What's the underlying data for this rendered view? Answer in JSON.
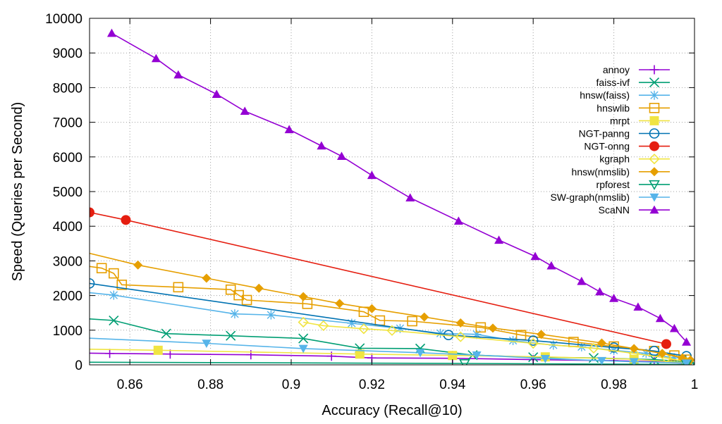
{
  "chart_data": {
    "type": "line",
    "xlabel": "Accuracy (Recall@10)",
    "ylabel": "Speed (Queries per Second)",
    "xlim": [
      0.85,
      1.0
    ],
    "ylim": [
      0,
      10000
    ],
    "x_ticks": [
      "0.86",
      "0.88",
      "0.9",
      "0.92",
      "0.94",
      "0.96",
      "0.98",
      "1"
    ],
    "x_tick_values": [
      0.86,
      0.88,
      0.9,
      0.92,
      0.94,
      0.96,
      0.98,
      1.0
    ],
    "y_ticks": [
      "0",
      "1000",
      "2000",
      "3000",
      "4000",
      "5000",
      "6000",
      "7000",
      "8000",
      "9000",
      "10000"
    ],
    "y_tick_values": [
      0,
      1000,
      2000,
      3000,
      4000,
      5000,
      6000,
      7000,
      8000,
      9000,
      10000
    ],
    "grid": true,
    "legend_position": "top-right",
    "series": [
      {
        "name": "annoy",
        "color": "#9400d3",
        "marker": "plus",
        "points": [
          [
            0.84,
            350
          ],
          [
            0.855,
            330
          ],
          [
            0.87,
            310
          ],
          [
            0.89,
            290
          ],
          [
            0.91,
            250
          ],
          [
            0.92,
            200
          ],
          [
            0.94,
            190
          ],
          [
            0.96,
            150
          ],
          [
            0.98,
            120
          ],
          [
            0.99,
            90
          ],
          [
            0.998,
            40
          ]
        ]
      },
      {
        "name": "faiss-ivf",
        "color": "#009e73",
        "marker": "x",
        "points": [
          [
            0.84,
            1400
          ],
          [
            0.856,
            1280
          ],
          [
            0.869,
            900
          ],
          [
            0.885,
            840
          ],
          [
            0.903,
            760
          ],
          [
            0.917,
            480
          ],
          [
            0.932,
            470
          ],
          [
            0.945,
            280
          ],
          [
            0.96,
            220
          ],
          [
            0.975,
            200
          ],
          [
            0.99,
            150
          ],
          [
            0.998,
            90
          ],
          [
            1.0,
            30
          ]
        ]
      },
      {
        "name": "hnsw(faiss)",
        "color": "#56b4e9",
        "marker": "star",
        "points": [
          [
            0.84,
            2200
          ],
          [
            0.856,
            2010
          ],
          [
            0.886,
            1470
          ],
          [
            0.895,
            1440
          ],
          [
            0.915,
            1200
          ],
          [
            0.927,
            1050
          ],
          [
            0.937,
            910
          ],
          [
            0.946,
            880
          ],
          [
            0.955,
            700
          ],
          [
            0.965,
            570
          ],
          [
            0.972,
            520
          ],
          [
            0.98,
            420
          ],
          [
            0.988,
            330
          ],
          [
            0.995,
            200
          ]
        ]
      },
      {
        "name": "hnswlib",
        "color": "#e69f00",
        "marker": "square-open",
        "points": [
          [
            0.84,
            3000
          ],
          [
            0.853,
            2790
          ],
          [
            0.856,
            2640
          ],
          [
            0.858,
            2310
          ],
          [
            0.872,
            2240
          ],
          [
            0.885,
            2170
          ],
          [
            0.887,
            2010
          ],
          [
            0.889,
            1870
          ],
          [
            0.904,
            1760
          ],
          [
            0.918,
            1530
          ],
          [
            0.922,
            1280
          ],
          [
            0.93,
            1260
          ],
          [
            0.947,
            1080
          ],
          [
            0.957,
            860
          ],
          [
            0.97,
            660
          ],
          [
            0.98,
            530
          ],
          [
            0.99,
            400
          ],
          [
            0.995,
            270
          ],
          [
            0.998,
            150
          ]
        ]
      },
      {
        "name": "mrpt",
        "color": "#f0e442",
        "marker": "square-filled",
        "points": [
          [
            0.84,
            470
          ],
          [
            0.867,
            420
          ],
          [
            0.917,
            310
          ],
          [
            0.94,
            270
          ],
          [
            0.963,
            230
          ],
          [
            0.985,
            160
          ],
          [
            0.998,
            60
          ]
        ]
      },
      {
        "name": "NGT-panng",
        "color": "#0072b2",
        "marker": "circle-open",
        "points": [
          [
            0.85,
            2350
          ],
          [
            0.939,
            860
          ],
          [
            0.96,
            700
          ],
          [
            0.98,
            500
          ],
          [
            0.99,
            400
          ],
          [
            0.998,
            250
          ]
        ]
      },
      {
        "name": "NGT-onng",
        "color": "#e51e10",
        "marker": "circle-filled",
        "points": [
          [
            0.85,
            4400
          ],
          [
            0.859,
            4180
          ],
          [
            0.993,
            600
          ]
        ]
      },
      {
        "name": "kgraph",
        "color": "#f0e442",
        "marker": "diamond-open",
        "points": [
          [
            0.903,
            1230
          ],
          [
            0.908,
            1130
          ],
          [
            0.918,
            1040
          ],
          [
            0.925,
            990
          ],
          [
            0.942,
            810
          ],
          [
            0.96,
            620
          ],
          [
            0.975,
            480
          ],
          [
            0.985,
            330
          ],
          [
            0.993,
            200
          ],
          [
            0.998,
            90
          ]
        ]
      },
      {
        "name": "hnsw(nmslib)",
        "color": "#e69f00",
        "marker": "diamond-filled",
        "points": [
          [
            0.84,
            3500
          ],
          [
            0.862,
            2880
          ],
          [
            0.879,
            2500
          ],
          [
            0.892,
            2210
          ],
          [
            0.903,
            1970
          ],
          [
            0.912,
            1770
          ],
          [
            0.92,
            1620
          ],
          [
            0.933,
            1380
          ],
          [
            0.942,
            1210
          ],
          [
            0.95,
            1060
          ],
          [
            0.962,
            880
          ],
          [
            0.977,
            630
          ],
          [
            0.985,
            470
          ],
          [
            0.992,
            330
          ],
          [
            0.997,
            200
          ],
          [
            0.999,
            140
          ]
        ]
      },
      {
        "name": "rpforest",
        "color": "#009e73",
        "marker": "triangle-down-open",
        "points": [
          [
            0.84,
            80
          ],
          [
            0.943,
            40
          ],
          [
            0.998,
            10
          ]
        ]
      },
      {
        "name": "SW-graph(nmslib)",
        "color": "#56b4e9",
        "marker": "triangle-down-filled",
        "points": [
          [
            0.84,
            820
          ],
          [
            0.879,
            620
          ],
          [
            0.903,
            470
          ],
          [
            0.932,
            350
          ],
          [
            0.946,
            280
          ],
          [
            0.963,
            180
          ],
          [
            0.977,
            120
          ],
          [
            0.985,
            90
          ],
          [
            0.998,
            50
          ]
        ]
      },
      {
        "name": "ScaNN",
        "color": "#9400d3",
        "marker": "triangle-up-filled",
        "points": [
          [
            0.8555,
            9570
          ],
          [
            0.8665,
            8840
          ],
          [
            0.872,
            8370
          ],
          [
            0.8815,
            7810
          ],
          [
            0.8885,
            7320
          ],
          [
            0.8995,
            6790
          ],
          [
            0.9075,
            6320
          ],
          [
            0.9125,
            6020
          ],
          [
            0.92,
            5470
          ],
          [
            0.9295,
            4820
          ],
          [
            0.9415,
            4150
          ],
          [
            0.9515,
            3600
          ],
          [
            0.9605,
            3130
          ],
          [
            0.9645,
            2860
          ],
          [
            0.972,
            2410
          ],
          [
            0.9765,
            2110
          ],
          [
            0.98,
            1920
          ],
          [
            0.986,
            1670
          ],
          [
            0.9915,
            1340
          ],
          [
            0.995,
            1050
          ],
          [
            0.998,
            660
          ]
        ]
      }
    ]
  }
}
